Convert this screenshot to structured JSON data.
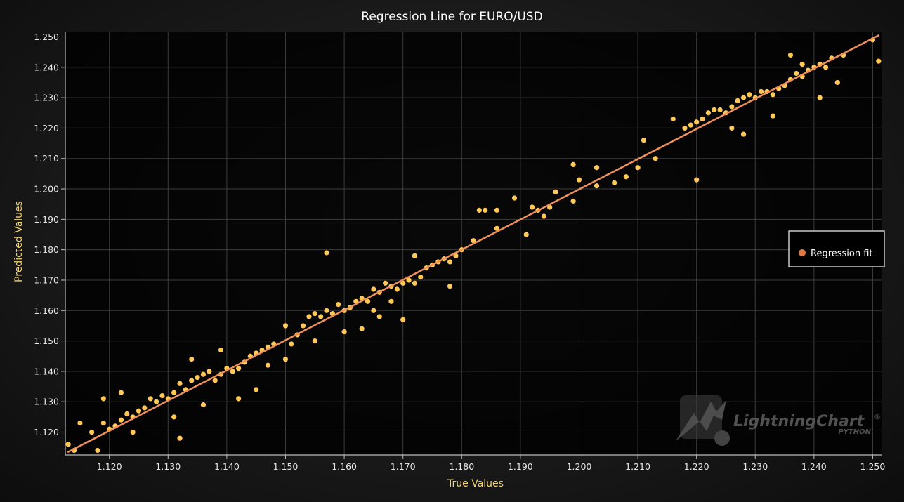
{
  "chart_data": {
    "type": "scatter",
    "title": "Regression Line for EURO/USD",
    "xlabel": "True Values",
    "ylabel": "Predicted Values",
    "xlim": [
      1.1125,
      1.2515
    ],
    "ylim": [
      1.1125,
      1.2515
    ],
    "xticks": [
      "1.120",
      "1.130",
      "1.140",
      "1.150",
      "1.160",
      "1.170",
      "1.180",
      "1.190",
      "1.200",
      "1.210",
      "1.220",
      "1.230",
      "1.240",
      "1.250"
    ],
    "yticks": [
      "1.120",
      "1.130",
      "1.140",
      "1.150",
      "1.160",
      "1.170",
      "1.180",
      "1.190",
      "1.200",
      "1.210",
      "1.220",
      "1.230",
      "1.240",
      "1.250"
    ],
    "grid": true,
    "legend": {
      "placement": "right",
      "entries": [
        "Regression fit"
      ]
    },
    "colors": {
      "points": "#ffc857",
      "line": "#f0905a",
      "legend_marker": "#e07a45"
    },
    "regression_line": {
      "x": [
        1.113,
        1.251
      ],
      "y": [
        1.1135,
        1.2505
      ]
    },
    "series": [
      {
        "x": [
          1.113,
          1.114,
          1.115,
          1.117,
          1.118,
          1.119,
          1.12,
          1.121,
          1.122,
          1.123,
          1.124,
          1.125,
          1.126,
          1.127,
          1.128,
          1.129,
          1.13,
          1.131,
          1.132,
          1.133,
          1.134,
          1.135,
          1.136,
          1.137,
          1.138,
          1.139,
          1.14,
          1.141,
          1.142,
          1.143,
          1.144,
          1.145,
          1.146,
          1.147,
          1.148,
          1.15,
          1.151,
          1.152,
          1.153,
          1.154,
          1.155,
          1.156,
          1.157,
          1.158,
          1.159,
          1.16,
          1.161,
          1.162,
          1.163,
          1.164,
          1.165,
          1.166,
          1.167,
          1.168,
          1.169,
          1.17,
          1.171,
          1.172,
          1.173,
          1.174,
          1.175,
          1.176,
          1.177,
          1.178,
          1.179,
          1.18,
          1.182,
          1.184,
          1.186,
          1.192,
          1.193,
          1.195,
          1.196,
          1.199,
          1.2,
          1.203,
          1.206,
          1.208,
          1.21,
          1.213,
          1.216,
          1.218,
          1.22,
          1.221,
          1.222,
          1.223,
          1.224,
          1.225,
          1.226,
          1.227,
          1.228,
          1.229,
          1.23,
          1.231,
          1.232,
          1.233,
          1.234,
          1.235,
          1.236,
          1.237,
          1.238,
          1.239,
          1.24,
          1.241,
          1.242,
          1.243,
          1.245,
          1.25,
          1.251,
          1.132,
          1.157,
          1.183,
          1.186,
          1.189,
          1.191,
          1.124,
          1.136,
          1.145,
          1.16,
          1.166,
          1.17,
          1.22,
          1.228,
          1.233,
          1.238,
          1.244,
          1.122,
          1.131,
          1.142,
          1.15,
          1.163,
          1.172,
          1.199,
          1.203,
          1.211,
          1.236,
          1.241,
          1.226,
          1.119,
          1.134,
          1.139,
          1.147,
          1.155,
          1.165,
          1.168,
          1.178,
          1.194,
          1.219
        ],
        "y": [
          1.116,
          1.114,
          1.123,
          1.12,
          1.114,
          1.123,
          1.121,
          1.122,
          1.124,
          1.126,
          1.125,
          1.127,
          1.128,
          1.131,
          1.13,
          1.132,
          1.131,
          1.133,
          1.136,
          1.134,
          1.137,
          1.138,
          1.139,
          1.14,
          1.137,
          1.139,
          1.141,
          1.14,
          1.141,
          1.143,
          1.145,
          1.146,
          1.147,
          1.148,
          1.149,
          1.155,
          1.149,
          1.152,
          1.155,
          1.158,
          1.159,
          1.158,
          1.16,
          1.159,
          1.162,
          1.16,
          1.161,
          1.163,
          1.164,
          1.163,
          1.167,
          1.166,
          1.169,
          1.168,
          1.167,
          1.169,
          1.17,
          1.169,
          1.171,
          1.174,
          1.175,
          1.176,
          1.177,
          1.176,
          1.178,
          1.18,
          1.183,
          1.193,
          1.187,
          1.194,
          1.193,
          1.194,
          1.199,
          1.196,
          1.203,
          1.201,
          1.202,
          1.204,
          1.207,
          1.21,
          1.223,
          1.22,
          1.222,
          1.223,
          1.225,
          1.226,
          1.226,
          1.225,
          1.227,
          1.229,
          1.23,
          1.231,
          1.23,
          1.232,
          1.232,
          1.231,
          1.233,
          1.234,
          1.236,
          1.238,
          1.237,
          1.239,
          1.24,
          1.241,
          1.24,
          1.243,
          1.244,
          1.249,
          1.242,
          1.118,
          1.179,
          1.193,
          1.193,
          1.197,
          1.185,
          1.12,
          1.129,
          1.134,
          1.153,
          1.158,
          1.157,
          1.203,
          1.218,
          1.224,
          1.241,
          1.235,
          1.133,
          1.125,
          1.131,
          1.144,
          1.154,
          1.178,
          1.208,
          1.207,
          1.216,
          1.244,
          1.23,
          1.22,
          1.131,
          1.144,
          1.147,
          1.142,
          1.15,
          1.16,
          1.163,
          1.168,
          1.191,
          1.221
        ]
      }
    ]
  },
  "watermark": {
    "brand": "LightningChart",
    "product": "PYTHON",
    "mark": "®"
  }
}
